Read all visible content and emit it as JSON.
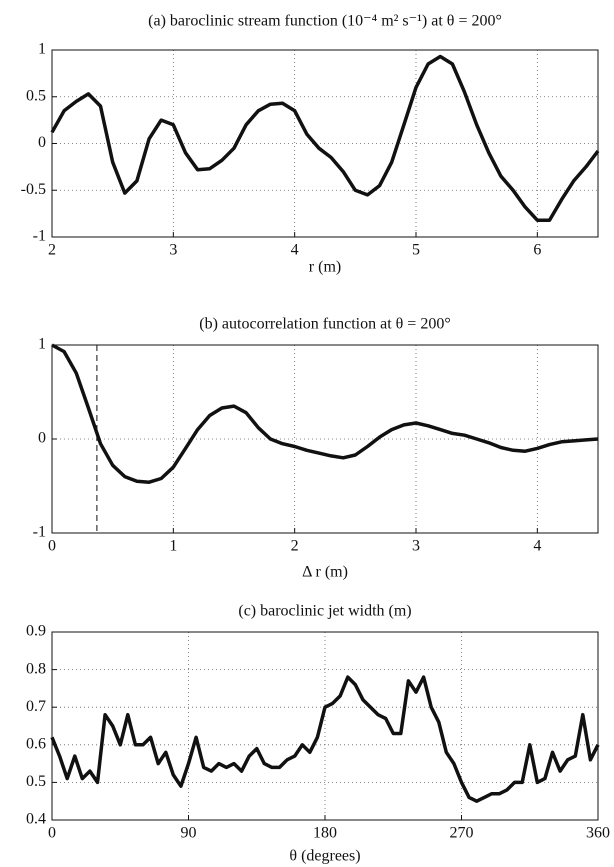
{
  "chart_data": [
    {
      "type": "line",
      "title": "(a) baroclinic stream function (10⁻⁴ m² s⁻¹) at θ = 200°",
      "xlabel": "r (m)",
      "x": [
        2.0,
        2.1,
        2.2,
        2.3,
        2.4,
        2.5,
        2.6,
        2.7,
        2.8,
        2.9,
        3.0,
        3.1,
        3.2,
        3.3,
        3.4,
        3.5,
        3.6,
        3.7,
        3.8,
        3.9,
        4.0,
        4.1,
        4.2,
        4.3,
        4.4,
        4.5,
        4.6,
        4.7,
        4.8,
        4.9,
        5.0,
        5.1,
        5.2,
        5.3,
        5.4,
        5.5,
        5.6,
        5.7,
        5.8,
        5.9,
        6.0,
        6.1,
        6.2,
        6.3,
        6.4,
        6.5
      ],
      "values": [
        0.12,
        0.35,
        0.45,
        0.53,
        0.4,
        -0.2,
        -0.53,
        -0.4,
        0.05,
        0.25,
        0.2,
        -0.1,
        -0.28,
        -0.27,
        -0.18,
        -0.05,
        0.2,
        0.35,
        0.42,
        0.43,
        0.35,
        0.1,
        -0.05,
        -0.15,
        -0.3,
        -0.5,
        -0.55,
        -0.45,
        -0.2,
        0.2,
        0.6,
        0.85,
        0.93,
        0.85,
        0.55,
        0.2,
        -0.1,
        -0.35,
        -0.5,
        -0.68,
        -0.82,
        -0.82,
        -0.6,
        -0.4,
        -0.25,
        -0.08
      ],
      "color": "#111111",
      "xlim": [
        2,
        6.5
      ],
      "xticks": [
        2,
        3,
        4,
        5,
        6
      ],
      "ylim": [
        -1,
        1
      ],
      "yticks": [
        -1,
        -0.5,
        0,
        0.5,
        1
      ],
      "grid": true
    },
    {
      "type": "line",
      "title": "(b) autocorrelation function at θ = 200°",
      "xlabel": "Δ r (m)",
      "x": [
        0,
        0.1,
        0.2,
        0.3,
        0.4,
        0.5,
        0.6,
        0.7,
        0.8,
        0.9,
        1.0,
        1.1,
        1.2,
        1.3,
        1.4,
        1.5,
        1.6,
        1.7,
        1.8,
        1.9,
        2.0,
        2.1,
        2.2,
        2.3,
        2.4,
        2.5,
        2.6,
        2.7,
        2.8,
        2.9,
        3.0,
        3.1,
        3.2,
        3.3,
        3.4,
        3.5,
        3.6,
        3.7,
        3.8,
        3.9,
        4.0,
        4.1,
        4.2,
        4.3,
        4.4,
        4.5
      ],
      "values": [
        1,
        0.93,
        0.7,
        0.33,
        -0.05,
        -0.28,
        -0.4,
        -0.45,
        -0.46,
        -0.42,
        -0.3,
        -0.1,
        0.1,
        0.25,
        0.33,
        0.35,
        0.28,
        0.12,
        0.0,
        -0.05,
        -0.08,
        -0.12,
        -0.15,
        -0.18,
        -0.2,
        -0.17,
        -0.08,
        0.02,
        0.1,
        0.15,
        0.17,
        0.14,
        0.1,
        0.06,
        0.04,
        0.0,
        -0.04,
        -0.09,
        -0.12,
        -0.13,
        -0.1,
        -0.06,
        -0.03,
        -0.02,
        -0.01,
        0
      ],
      "color": "#111111",
      "vline": 0.37,
      "xlim": [
        0,
        4.5
      ],
      "xticks": [
        0,
        1,
        2,
        3,
        4
      ],
      "ylim": [
        -1,
        1
      ],
      "yticks": [
        -1,
        0,
        1
      ],
      "grid": true
    },
    {
      "type": "line",
      "title": "(c) baroclinic jet width (m)",
      "xlabel": "θ (degrees)",
      "x": [
        0,
        5,
        10,
        15,
        20,
        25,
        30,
        35,
        40,
        45,
        50,
        55,
        60,
        65,
        70,
        75,
        80,
        85,
        90,
        95,
        100,
        105,
        110,
        115,
        120,
        125,
        130,
        135,
        140,
        145,
        150,
        155,
        160,
        165,
        170,
        175,
        180,
        185,
        190,
        195,
        200,
        205,
        210,
        215,
        220,
        225,
        230,
        235,
        240,
        245,
        250,
        255,
        260,
        265,
        270,
        275,
        280,
        285,
        290,
        295,
        300,
        305,
        310,
        315,
        320,
        325,
        330,
        335,
        340,
        345,
        350,
        355,
        360
      ],
      "values": [
        0.62,
        0.57,
        0.51,
        0.57,
        0.51,
        0.53,
        0.5,
        0.68,
        0.65,
        0.6,
        0.68,
        0.6,
        0.6,
        0.62,
        0.55,
        0.58,
        0.52,
        0.49,
        0.55,
        0.62,
        0.54,
        0.53,
        0.55,
        0.54,
        0.55,
        0.53,
        0.57,
        0.59,
        0.55,
        0.54,
        0.54,
        0.56,
        0.57,
        0.6,
        0.58,
        0.62,
        0.7,
        0.71,
        0.73,
        0.78,
        0.76,
        0.72,
        0.7,
        0.68,
        0.67,
        0.63,
        0.63,
        0.77,
        0.74,
        0.78,
        0.7,
        0.66,
        0.58,
        0.55,
        0.5,
        0.46,
        0.45,
        0.46,
        0.47,
        0.47,
        0.48,
        0.5,
        0.5,
        0.6,
        0.5,
        0.51,
        0.58,
        0.53,
        0.56,
        0.57,
        0.68,
        0.56,
        0.6
      ],
      "color": "#111111",
      "xlim": [
        0,
        360
      ],
      "xticks": [
        0,
        90,
        180,
        270,
        360
      ],
      "ylim": [
        0.4,
        0.9
      ],
      "yticks": [
        0.4,
        0.5,
        0.6,
        0.7,
        0.8,
        0.9
      ],
      "grid": true
    }
  ]
}
